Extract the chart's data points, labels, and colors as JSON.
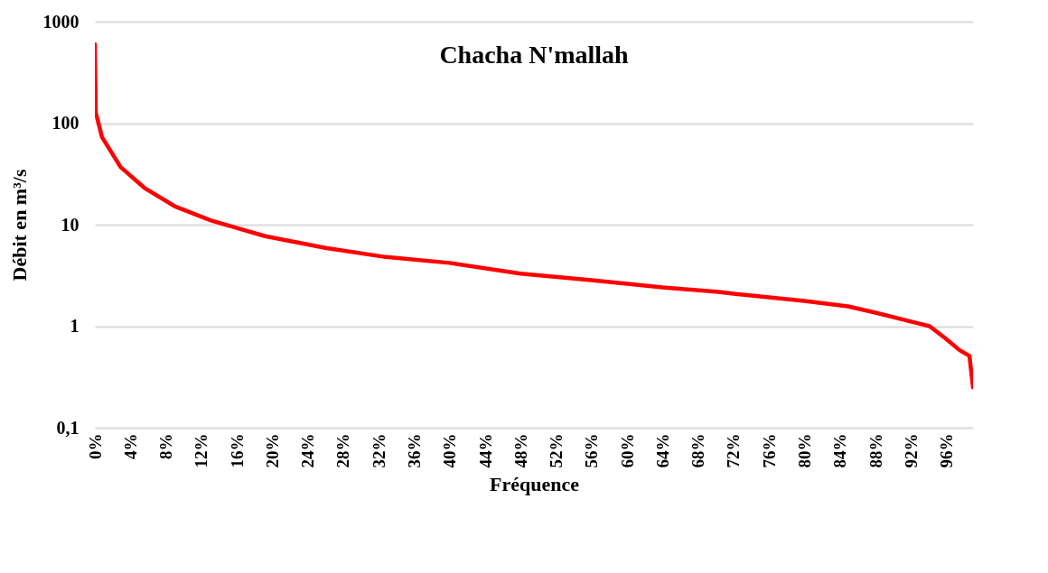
{
  "chart_data": {
    "type": "line",
    "title": "Chacha N'mallah",
    "xlabel": "Fréquence",
    "ylabel": "Débit en m³/s",
    "log": "y",
    "grid": "y",
    "marker": "none",
    "line_style": "solid",
    "x": [
      0,
      0.1,
      0.8,
      2.9,
      5.6,
      9,
      13.1,
      19.2,
      26,
      32.8,
      40,
      48,
      56,
      64,
      70.3,
      72,
      80,
      84.9,
      88,
      94.1,
      95.8,
      97.5,
      98.6,
      99
    ],
    "series": [
      {
        "color": "#ff0000",
        "values": [
          600,
          128,
          73,
          37,
          23,
          15.2,
          11,
          7.7,
          5.9,
          4.8,
          4.2,
          3.3,
          2.84,
          2.41,
          2.18,
          2.09,
          1.77,
          1.57,
          1.36,
          1.0,
          0.77,
          0.58,
          0.51,
          0.25
        ]
      }
    ],
    "xlim": [
      0,
      99
    ],
    "xticks": [
      {
        "value": 0,
        "label": "0%"
      },
      {
        "value": 4,
        "label": "4%"
      },
      {
        "value": 8,
        "label": "8%"
      },
      {
        "value": 12,
        "label": "12%"
      },
      {
        "value": 16,
        "label": "16%"
      },
      {
        "value": 20,
        "label": "20%"
      },
      {
        "value": 24,
        "label": "24%"
      },
      {
        "value": 28,
        "label": "28%"
      },
      {
        "value": 32,
        "label": "32%"
      },
      {
        "value": 36,
        "label": "36%"
      },
      {
        "value": 40,
        "label": "40%"
      },
      {
        "value": 44,
        "label": "44%"
      },
      {
        "value": 48,
        "label": "48%"
      },
      {
        "value": 52,
        "label": "52%"
      },
      {
        "value": 56,
        "label": "56%"
      },
      {
        "value": 60,
        "label": "60%"
      },
      {
        "value": 64,
        "label": "64%"
      },
      {
        "value": 68,
        "label": "68%"
      },
      {
        "value": 72,
        "label": "72%"
      },
      {
        "value": 76,
        "label": "76%"
      },
      {
        "value": 80,
        "label": "80%"
      },
      {
        "value": 84,
        "label": "84%"
      },
      {
        "value": 88,
        "label": "88%"
      },
      {
        "value": 92,
        "label": "92%"
      },
      {
        "value": 96,
        "label": "96%"
      }
    ],
    "ylim": [
      0.1,
      1000
    ],
    "yticks": [
      {
        "value": 0.1,
        "label": "0,1"
      },
      1,
      10,
      100,
      1000
    ]
  }
}
